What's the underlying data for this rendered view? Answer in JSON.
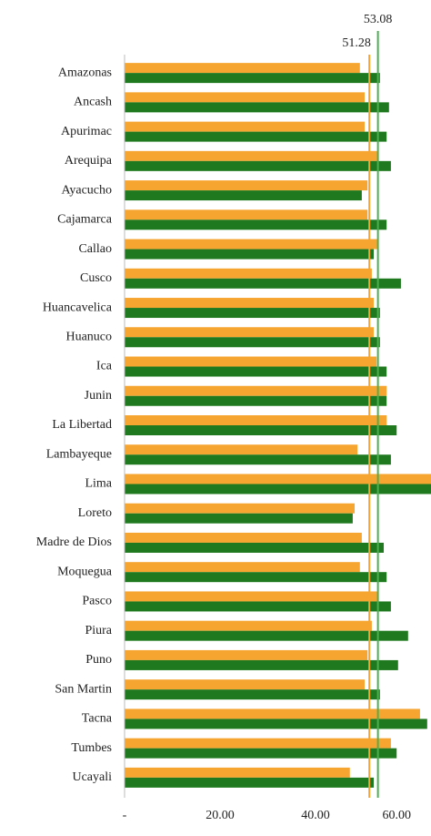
{
  "chart_data": {
    "type": "hbar",
    "categories": [
      "Amazonas",
      "Ancash",
      "Apurimac",
      "Arequipa",
      "Ayacucho",
      "Cajamarca",
      "Callao",
      "Cusco",
      "Huancavelica",
      "Huanuco",
      "Ica",
      "Junin",
      "La Libertad",
      "Lambayeque",
      "Lima",
      "Loreto",
      "Madre de Dios",
      "Moquegua",
      "Pasco",
      "Piura",
      "Puno",
      "San Martin",
      "Tacna",
      "Tumbes",
      "Ucayali"
    ],
    "series": [
      {
        "color": "#f7a531",
        "values": [
          49.3,
          50.3,
          50.3,
          53.1,
          50.9,
          50.9,
          53.1,
          51.8,
          52.2,
          52.2,
          52.8,
          54.9,
          54.9,
          48.8,
          64.2,
          48.2,
          49.7,
          49.3,
          53.1,
          51.8,
          50.9,
          50.3,
          61.9,
          55.8,
          47.2
        ]
      },
      {
        "color": "#1f7a1f",
        "values": [
          53.5,
          55.4,
          54.9,
          55.8,
          49.7,
          54.9,
          52.2,
          57.9,
          53.5,
          53.5,
          54.9,
          54.9,
          57.0,
          55.8,
          64.2,
          47.8,
          54.3,
          54.9,
          55.8,
          59.4,
          57.3,
          53.5,
          63.4,
          57.0,
          52.2
        ]
      }
    ],
    "reference_lines": [
      {
        "value": 51.28,
        "color": "#f7a531"
      },
      {
        "value": 53.08,
        "color": "#4caf50"
      }
    ],
    "xlim": [
      0,
      64.2
    ],
    "xticks": [
      {
        "value": 0,
        "label": "-"
      },
      {
        "value": 20,
        "label": "20.00"
      },
      {
        "value": 40,
        "label": "40.00"
      },
      {
        "value": 60,
        "label": "60.00"
      }
    ]
  }
}
